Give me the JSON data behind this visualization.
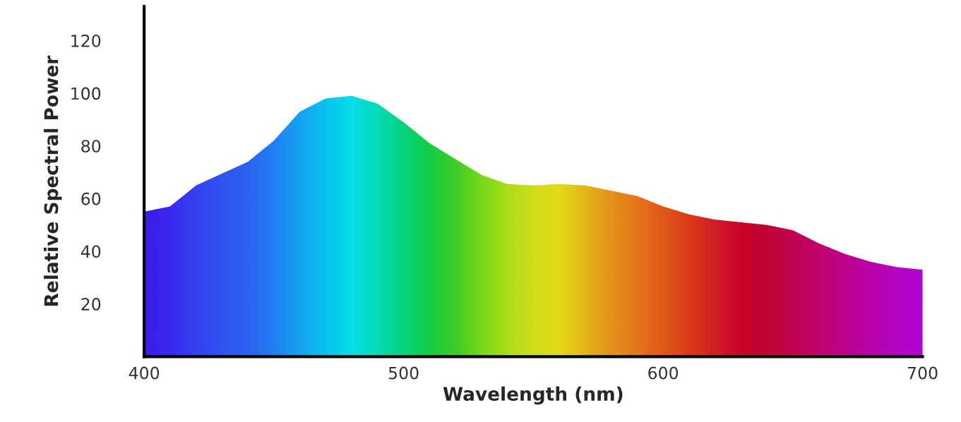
{
  "chart_data": {
    "type": "area",
    "xlabel": "Wavelength (nm)",
    "ylabel": "Relative Spectral Power",
    "xlim": [
      400,
      700
    ],
    "xticks": [
      400,
      500,
      600,
      700
    ],
    "ylim": [
      0,
      133
    ],
    "yticks": [
      20,
      40,
      60,
      80,
      100,
      120
    ],
    "grid": false,
    "legend": false,
    "series": [
      {
        "x": [
          400,
          410,
          420,
          440,
          450,
          460,
          470,
          480,
          490,
          500,
          510,
          520,
          530,
          540,
          550,
          560,
          570,
          580,
          590,
          600,
          610,
          620,
          630,
          640,
          650,
          660,
          670,
          680,
          690,
          700
        ],
        "values": [
          55,
          57,
          65,
          74,
          82,
          93,
          98,
          99,
          96,
          89,
          81,
          75,
          69,
          65.5,
          65,
          65.5,
          65,
          63,
          61,
          57,
          54,
          52,
          51,
          50,
          48,
          43,
          39,
          36,
          34,
          33
        ],
        "colors": [
          "#3a1ee8",
          "#3a2cf0",
          "#3548f0",
          "#2a6cf2",
          "#1e8cf4",
          "#12b4f2",
          "#00d8f0",
          "#00f4e8",
          "#00f0b0",
          "#00e870",
          "#10e030",
          "#40e010",
          "#80f000",
          "#b8f400",
          "#e0f400",
          "#f8f000",
          "#f8c800",
          "#f8a000",
          "#f88000",
          "#f46000",
          "#ee4000",
          "#e42010",
          "#d80010",
          "#d00020",
          "#d0003c",
          "#d0005c",
          "#cc0080",
          "#c800a0",
          "#c400c0",
          "#c000d0"
        ]
      }
    ]
  }
}
